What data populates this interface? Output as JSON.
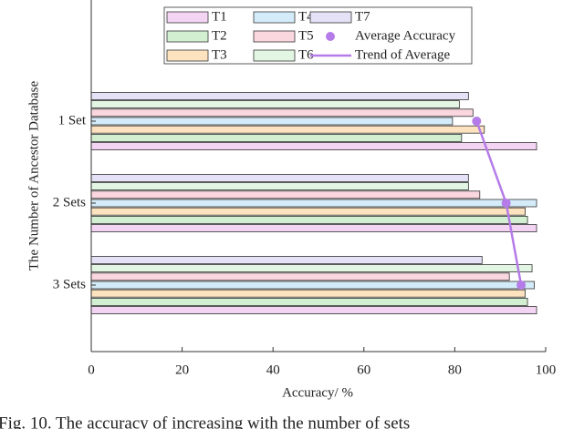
{
  "chart_data": {
    "type": "hbar",
    "x_label": "Accuracy/ %",
    "y_label": "The Number of Ancestor Database",
    "caption": "Fig. 10. The accuracy of increasing with the number of sets",
    "categories": [
      "1 Set",
      "2 Sets",
      "3 Sets"
    ],
    "series": [
      {
        "name": "T1",
        "color": "#f3d4f3",
        "values": [
          98,
          98,
          98
        ]
      },
      {
        "name": "T2",
        "color": "#d2efd2",
        "values": [
          81.5,
          96,
          96
        ]
      },
      {
        "name": "T3",
        "color": "#fde2bf",
        "values": [
          86.5,
          95.5,
          95.5
        ]
      },
      {
        "name": "T4",
        "color": "#d4ecf9",
        "values": [
          79.5,
          98,
          97.5
        ]
      },
      {
        "name": "T5",
        "color": "#fad6df",
        "values": [
          84,
          85.5,
          92
        ]
      },
      {
        "name": "T6",
        "color": "#e3f6e3",
        "values": [
          81,
          83,
          97
        ]
      },
      {
        "name": "T7",
        "color": "#e5e1f6",
        "values": [
          83,
          83,
          86
        ]
      }
    ],
    "average": {
      "name": "Average Accuracy",
      "color": "#b57be8",
      "values": [
        84.8,
        91.3,
        94.6
      ]
    },
    "trend": {
      "name": "Trend of Average",
      "color": "#b57be8"
    },
    "xlim": [
      0,
      100
    ],
    "xticks": [
      0,
      20,
      40,
      60,
      80,
      100
    ]
  }
}
